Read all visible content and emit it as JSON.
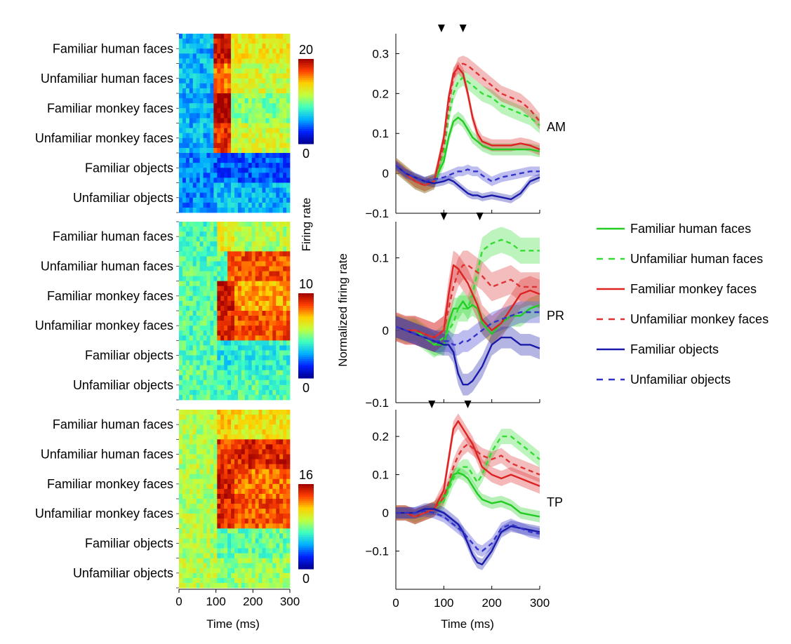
{
  "colors": {
    "familiar_human": "#22cc22",
    "unfamiliar_human": "#33dd33",
    "familiar_monkey": "#dd2222",
    "unfamiliar_monkey": "#dd3333",
    "familiar_objects": "#1a1aaa",
    "unfamiliar_objects": "#3333cc",
    "colormap": [
      "#00008f",
      "#0020ff",
      "#00b0ff",
      "#40ffc0",
      "#c0ff40",
      "#ffd000",
      "#ff4000",
      "#a00000"
    ]
  },
  "legend": {
    "entries": [
      {
        "label": "Familiar human faces",
        "color": "#22cc22",
        "dash": false
      },
      {
        "label": "Unfamiliar human faces",
        "color": "#33dd33",
        "dash": true
      },
      {
        "label": "Familiar monkey faces",
        "color": "#dd2222",
        "dash": false
      },
      {
        "label": "Unfamiliar monkey faces",
        "color": "#dd3333",
        "dash": true
      },
      {
        "label": "Familiar objects",
        "color": "#1a1aaa",
        "dash": false
      },
      {
        "label": "Unfamiliar objects",
        "color": "#3333cc",
        "dash": true
      }
    ]
  },
  "chart_data": [
    {
      "type": "heatmap",
      "region": "AM",
      "row_labels": [
        "Familiar human faces",
        "Unfamiliar human faces",
        "Familiar monkey faces",
        "Unfamiliar monkey faces",
        "Familiar objects",
        "Unfamiliar objects"
      ],
      "xlim": [
        0,
        300
      ],
      "x_ticks": [
        "0",
        "100",
        "200",
        "300"
      ],
      "colorbar": {
        "min": "0",
        "max": "20",
        "label": "Firing rate"
      },
      "values_by_category": [
        {
          "baseline": 6,
          "onset": 90,
          "peak": 19,
          "sustained": 13
        },
        {
          "baseline": 6,
          "onset": 90,
          "peak": 16,
          "sustained": 12
        },
        {
          "baseline": 6,
          "onset": 90,
          "peak": 20,
          "sustained": 10
        },
        {
          "baseline": 6,
          "onset": 90,
          "peak": 18,
          "sustained": 12
        },
        {
          "baseline": 5,
          "onset": 90,
          "peak": 4,
          "sustained": 4
        },
        {
          "baseline": 5,
          "onset": 90,
          "peak": 6,
          "sustained": 6
        }
      ]
    },
    {
      "type": "heatmap",
      "region": "PR",
      "row_labels": [
        "Familiar human faces",
        "Unfamiliar human faces",
        "Familiar monkey faces",
        "Unfamiliar monkey faces",
        "Familiar objects",
        "Unfamiliar objects"
      ],
      "xlim": [
        0,
        300
      ],
      "x_ticks": [
        "0",
        "100",
        "200",
        "300"
      ],
      "colorbar": {
        "min": "0",
        "max": "10",
        "label": ""
      },
      "values_by_category": [
        {
          "baseline": 4.5,
          "onset": 100,
          "peak": 6.5,
          "sustained": 5.5
        },
        {
          "baseline": 4.5,
          "onset": 130,
          "peak": 8.5,
          "sustained": 8.5
        },
        {
          "baseline": 4.5,
          "onset": 100,
          "peak": 9.5,
          "sustained": 7.5
        },
        {
          "baseline": 4.5,
          "onset": 100,
          "peak": 9,
          "sustained": 8.5
        },
        {
          "baseline": 4.5,
          "onset": 100,
          "peak": 3.8,
          "sustained": 4.0
        },
        {
          "baseline": 4.5,
          "onset": 100,
          "peak": 4.3,
          "sustained": 4.5
        }
      ]
    },
    {
      "type": "heatmap",
      "region": "TP",
      "row_labels": [
        "Familiar human faces",
        "Unfamiliar human faces",
        "Familiar monkey faces",
        "Unfamiliar monkey faces",
        "Familiar objects",
        "Unfamiliar objects"
      ],
      "xlim": [
        0,
        300
      ],
      "x_ticks": [
        "0",
        "100",
        "200",
        "300"
      ],
      "colorbar": {
        "min": "0",
        "max": "16",
        "label": ""
      },
      "values_by_category": [
        {
          "baseline": 9,
          "onset": 100,
          "peak": 11,
          "sustained": 10.5
        },
        {
          "baseline": 9,
          "onset": 100,
          "peak": 14,
          "sustained": 14.5
        },
        {
          "baseline": 9,
          "onset": 100,
          "peak": 15,
          "sustained": 13
        },
        {
          "baseline": 9,
          "onset": 100,
          "peak": 14.5,
          "sustained": 13.5
        },
        {
          "baseline": 9,
          "onset": 100,
          "peak": 7.5,
          "sustained": 7.5
        },
        {
          "baseline": 9,
          "onset": 100,
          "peak": 8,
          "sustained": 8.5
        }
      ]
    },
    {
      "type": "line",
      "region": "AM",
      "xlim": [
        0,
        300
      ],
      "ylim": [
        -0.1,
        0.35
      ],
      "y_ticks": [
        -0.1,
        0,
        0.1,
        0.2,
        0.3
      ],
      "x_ticks": [
        0,
        100,
        200,
        300
      ],
      "arrow_markers_ms": [
        95,
        140
      ],
      "x": [
        0,
        20,
        40,
        60,
        80,
        100,
        110,
        120,
        130,
        140,
        150,
        160,
        170,
        180,
        200,
        220,
        240,
        260,
        280,
        300
      ],
      "series": [
        {
          "name": "Familiar human faces",
          "values": [
            0.02,
            0.0,
            -0.02,
            -0.03,
            -0.02,
            0.03,
            0.09,
            0.13,
            0.14,
            0.13,
            0.11,
            0.09,
            0.08,
            0.07,
            0.06,
            0.06,
            0.06,
            0.06,
            0.06,
            0.055
          ],
          "band": 0.015
        },
        {
          "name": "Unfamiliar human faces",
          "values": [
            0.02,
            0.0,
            -0.02,
            -0.03,
            -0.02,
            0.05,
            0.14,
            0.2,
            0.23,
            0.24,
            0.23,
            0.22,
            0.21,
            0.2,
            0.19,
            0.17,
            0.16,
            0.15,
            0.14,
            0.12
          ],
          "band": 0.02
        },
        {
          "name": "Familiar monkey faces",
          "values": [
            0.02,
            0.0,
            -0.02,
            -0.03,
            -0.02,
            0.09,
            0.19,
            0.25,
            0.265,
            0.25,
            0.2,
            0.14,
            0.1,
            0.08,
            0.07,
            0.07,
            0.07,
            0.075,
            0.07,
            0.06
          ],
          "band": 0.015
        },
        {
          "name": "Unfamiliar monkey faces",
          "values": [
            0.02,
            0.0,
            -0.02,
            -0.03,
            -0.02,
            0.07,
            0.17,
            0.24,
            0.27,
            0.275,
            0.27,
            0.26,
            0.25,
            0.24,
            0.22,
            0.2,
            0.19,
            0.18,
            0.16,
            0.13
          ],
          "band": 0.02
        },
        {
          "name": "Familiar objects",
          "values": [
            0.02,
            0.0,
            -0.01,
            -0.02,
            -0.025,
            -0.02,
            -0.015,
            -0.02,
            -0.03,
            -0.04,
            -0.05,
            -0.055,
            -0.055,
            -0.06,
            -0.055,
            -0.06,
            -0.065,
            -0.05,
            -0.02,
            -0.01
          ],
          "band": 0.01
        },
        {
          "name": "Unfamiliar objects",
          "values": [
            0.02,
            0.0,
            -0.01,
            -0.02,
            -0.015,
            -0.01,
            -0.005,
            0.0,
            0.005,
            0.005,
            0.01,
            0.005,
            0.005,
            -0.005,
            -0.02,
            -0.01,
            -0.005,
            0.0,
            0.005,
            0.005
          ],
          "band": 0.012
        }
      ],
      "label": "AM"
    },
    {
      "type": "line",
      "region": "PR",
      "xlim": [
        0,
        300
      ],
      "ylim": [
        -0.1,
        0.15
      ],
      "y_ticks": [
        -0.1,
        0,
        0.1
      ],
      "x_ticks": [
        0,
        100,
        200,
        300
      ],
      "arrow_markers_ms": [
        100,
        175
      ],
      "x": [
        0,
        20,
        40,
        60,
        80,
        100,
        110,
        120,
        130,
        140,
        150,
        160,
        170,
        180,
        200,
        220,
        240,
        260,
        280,
        300
      ],
      "series": [
        {
          "name": "Familiar human faces",
          "values": [
            0.005,
            0.0,
            0.0,
            -0.01,
            -0.02,
            -0.02,
            0.01,
            0.03,
            0.03,
            0.04,
            0.03,
            0.035,
            0.03,
            0.01,
            -0.005,
            0.01,
            0.02,
            0.02,
            0.03,
            0.035
          ],
          "band": 0.015
        },
        {
          "name": "Unfamiliar human faces",
          "values": [
            0.005,
            0.0,
            0.0,
            -0.01,
            -0.02,
            -0.01,
            0.0,
            0.01,
            0.03,
            0.03,
            0.03,
            0.05,
            0.08,
            0.11,
            0.12,
            0.125,
            0.12,
            0.11,
            0.11,
            0.11
          ],
          "band": 0.018
        },
        {
          "name": "Familiar monkey faces",
          "values": [
            0.005,
            0.0,
            0.0,
            -0.005,
            -0.01,
            0.0,
            0.05,
            0.09,
            0.085,
            0.075,
            0.065,
            0.05,
            0.035,
            0.015,
            0.0,
            0.01,
            0.03,
            0.05,
            0.055,
            0.05
          ],
          "band": 0.02
        },
        {
          "name": "Unfamiliar monkey faces",
          "values": [
            0.005,
            0.0,
            0.0,
            -0.005,
            -0.01,
            0.0,
            0.03,
            0.06,
            0.08,
            0.09,
            0.09,
            0.085,
            0.08,
            0.075,
            0.06,
            0.065,
            0.07,
            0.06,
            0.06,
            0.06
          ],
          "band": 0.02
        },
        {
          "name": "Familiar objects",
          "values": [
            0.005,
            0.0,
            -0.005,
            -0.01,
            -0.015,
            -0.02,
            -0.02,
            -0.03,
            -0.06,
            -0.075,
            -0.075,
            -0.07,
            -0.06,
            -0.05,
            -0.02,
            -0.01,
            -0.01,
            -0.02,
            -0.02,
            -0.025
          ],
          "band": 0.015
        },
        {
          "name": "Unfamiliar objects",
          "values": [
            0.005,
            0.0,
            -0.005,
            -0.01,
            -0.015,
            -0.015,
            -0.015,
            -0.02,
            -0.02,
            -0.015,
            -0.015,
            -0.01,
            -0.005,
            0.0,
            0.01,
            0.015,
            0.02,
            0.025,
            0.025,
            0.025
          ],
          "band": 0.015
        }
      ],
      "label": "PR"
    },
    {
      "type": "line",
      "region": "TP",
      "xlim": [
        0,
        300
      ],
      "ylim": [
        -0.2,
        0.27
      ],
      "y_ticks": [
        -0.1,
        0,
        0.1,
        0.2
      ],
      "x_ticks": [
        0,
        100,
        200,
        300
      ],
      "arrow_markers_ms": [
        75,
        150
      ],
      "x": [
        0,
        20,
        40,
        60,
        80,
        100,
        110,
        120,
        130,
        140,
        150,
        160,
        170,
        180,
        200,
        220,
        240,
        260,
        280,
        300
      ],
      "series": [
        {
          "name": "Familiar human faces",
          "values": [
            0.0,
            0.0,
            -0.01,
            0.0,
            0.01,
            0.04,
            0.07,
            0.1,
            0.105,
            0.1,
            0.09,
            0.07,
            0.05,
            0.035,
            0.025,
            0.03,
            0.02,
            0.0,
            -0.005,
            -0.01
          ],
          "band": 0.015
        },
        {
          "name": "Unfamiliar human faces",
          "values": [
            0.0,
            0.0,
            -0.01,
            0.0,
            0.01,
            0.03,
            0.06,
            0.09,
            0.11,
            0.12,
            0.12,
            0.1,
            0.08,
            0.1,
            0.16,
            0.2,
            0.2,
            0.18,
            0.16,
            0.14
          ],
          "band": 0.02
        },
        {
          "name": "Familiar monkey faces",
          "values": [
            0.0,
            0.0,
            -0.01,
            0.0,
            0.01,
            0.06,
            0.14,
            0.22,
            0.24,
            0.22,
            0.2,
            0.18,
            0.15,
            0.12,
            0.1,
            0.09,
            0.1,
            0.09,
            0.08,
            0.07
          ],
          "band": 0.02
        },
        {
          "name": "Unfamiliar monkey faces",
          "values": [
            0.0,
            0.0,
            -0.01,
            0.0,
            0.01,
            0.04,
            0.08,
            0.12,
            0.15,
            0.17,
            0.18,
            0.17,
            0.16,
            0.15,
            0.14,
            0.15,
            0.13,
            0.12,
            0.11,
            0.1
          ],
          "band": 0.02
        },
        {
          "name": "Familiar objects",
          "values": [
            0.0,
            0.0,
            0.0,
            0.01,
            0.01,
            0.0,
            -0.01,
            -0.02,
            -0.03,
            -0.05,
            -0.08,
            -0.11,
            -0.13,
            -0.135,
            -0.1,
            -0.05,
            -0.035,
            -0.04,
            -0.045,
            -0.05
          ],
          "band": 0.015
        },
        {
          "name": "Unfamiliar objects",
          "values": [
            0.0,
            0.0,
            0.0,
            0.005,
            0.0,
            -0.01,
            -0.02,
            -0.03,
            -0.04,
            -0.05,
            -0.065,
            -0.08,
            -0.095,
            -0.1,
            -0.08,
            -0.04,
            -0.03,
            -0.04,
            -0.05,
            -0.055
          ],
          "band": 0.015
        }
      ],
      "label": "TP"
    }
  ],
  "axes_text": {
    "heatmap_xlabel": "Time (ms)",
    "line_xlabel": "Time (ms)",
    "line_ylabel": "Normalized firing rate",
    "colorbar_label": "Firing rate"
  }
}
